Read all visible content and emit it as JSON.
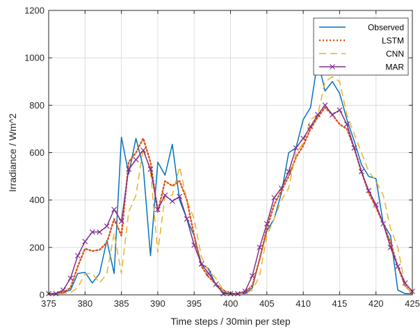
{
  "chart_data": {
    "type": "line",
    "xlabel": "Time steps / 30min per step",
    "ylabel": "Irradiance / Wm^2",
    "xlim": [
      375,
      425
    ],
    "ylim": [
      0,
      1200
    ],
    "xticks": [
      375,
      380,
      385,
      390,
      395,
      400,
      405,
      410,
      415,
      420,
      425
    ],
    "yticks": [
      0,
      200,
      400,
      600,
      800,
      1000,
      1200
    ],
    "grid": true,
    "legend_position": "top-right",
    "series": [
      {
        "name": "Observed",
        "style": "solid",
        "color": "#0072BD",
        "x": [
          375,
          376,
          377,
          378,
          379,
          380,
          381,
          382,
          383,
          384,
          385,
          386,
          387,
          388,
          389,
          390,
          391,
          392,
          393,
          394,
          395,
          396,
          397,
          398,
          399,
          400,
          401,
          402,
          403,
          404,
          405,
          406,
          407,
          408,
          409,
          410,
          411,
          412,
          413,
          414,
          415,
          416,
          417,
          418,
          419,
          420,
          421,
          422,
          423,
          424,
          425
        ],
        "y": [
          5,
          5,
          10,
          20,
          90,
          95,
          50,
          90,
          230,
          90,
          665,
          510,
          660,
          540,
          165,
          560,
          505,
          635,
          400,
          320,
          250,
          130,
          110,
          40,
          10,
          5,
          5,
          5,
          30,
          150,
          270,
          320,
          430,
          600,
          620,
          740,
          790,
          990,
          860,
          900,
          850,
          740,
          650,
          550,
          500,
          490,
          300,
          250,
          20,
          5,
          5
        ]
      },
      {
        "name": "LSTM",
        "style": "dotted",
        "color": "#D95319",
        "x": [
          375,
          376,
          377,
          378,
          379,
          380,
          381,
          382,
          383,
          384,
          385,
          386,
          387,
          388,
          389,
          390,
          391,
          392,
          393,
          394,
          395,
          396,
          397,
          398,
          399,
          400,
          401,
          402,
          403,
          404,
          405,
          406,
          407,
          408,
          409,
          410,
          411,
          412,
          413,
          414,
          415,
          416,
          417,
          418,
          419,
          420,
          421,
          422,
          423,
          424,
          425
        ],
        "y": [
          5,
          5,
          10,
          30,
          120,
          195,
          185,
          190,
          220,
          320,
          250,
          560,
          600,
          660,
          560,
          350,
          480,
          460,
          480,
          400,
          250,
          120,
          75,
          45,
          20,
          5,
          5,
          10,
          40,
          150,
          280,
          380,
          440,
          500,
          580,
          630,
          700,
          750,
          790,
          760,
          720,
          700,
          620,
          520,
          430,
          370,
          300,
          220,
          120,
          40,
          5
        ]
      },
      {
        "name": "CNN",
        "style": "dashed",
        "color": "#EDB120",
        "x": [
          375,
          376,
          377,
          378,
          379,
          380,
          381,
          382,
          383,
          384,
          385,
          386,
          387,
          388,
          389,
          390,
          391,
          392,
          393,
          394,
          395,
          396,
          397,
          398,
          399,
          400,
          401,
          402,
          403,
          404,
          405,
          406,
          407,
          408,
          409,
          410,
          411,
          412,
          413,
          414,
          415,
          416,
          417,
          418,
          419,
          420,
          421,
          422,
          423,
          424,
          425
        ],
        "y": [
          5,
          5,
          5,
          10,
          30,
          90,
          90,
          50,
          90,
          260,
          90,
          350,
          420,
          620,
          520,
          180,
          420,
          420,
          540,
          400,
          320,
          160,
          100,
          70,
          20,
          5,
          5,
          5,
          20,
          80,
          250,
          320,
          400,
          450,
          600,
          640,
          740,
          760,
          900,
          920,
          900,
          760,
          680,
          600,
          520,
          480,
          420,
          280,
          200,
          40,
          5
        ]
      },
      {
        "name": "MAR",
        "style": "solid-x",
        "color": "#7E2F8E",
        "x": [
          375,
          376,
          377,
          378,
          379,
          380,
          381,
          382,
          383,
          384,
          385,
          386,
          387,
          388,
          389,
          390,
          391,
          392,
          393,
          394,
          395,
          396,
          397,
          398,
          399,
          400,
          401,
          402,
          403,
          404,
          405,
          406,
          407,
          408,
          409,
          410,
          411,
          412,
          413,
          414,
          415,
          416,
          417,
          418,
          419,
          420,
          421,
          422,
          423,
          424,
          425
        ],
        "y": [
          5,
          5,
          20,
          70,
          165,
          225,
          265,
          265,
          290,
          360,
          310,
          530,
          570,
          610,
          530,
          360,
          420,
          395,
          415,
          320,
          210,
          130,
          90,
          45,
          5,
          5,
          5,
          15,
          80,
          200,
          300,
          410,
          450,
          520,
          620,
          660,
          710,
          760,
          800,
          760,
          780,
          720,
          620,
          520,
          440,
          380,
          300,
          200,
          120,
          50,
          15
        ]
      }
    ]
  }
}
